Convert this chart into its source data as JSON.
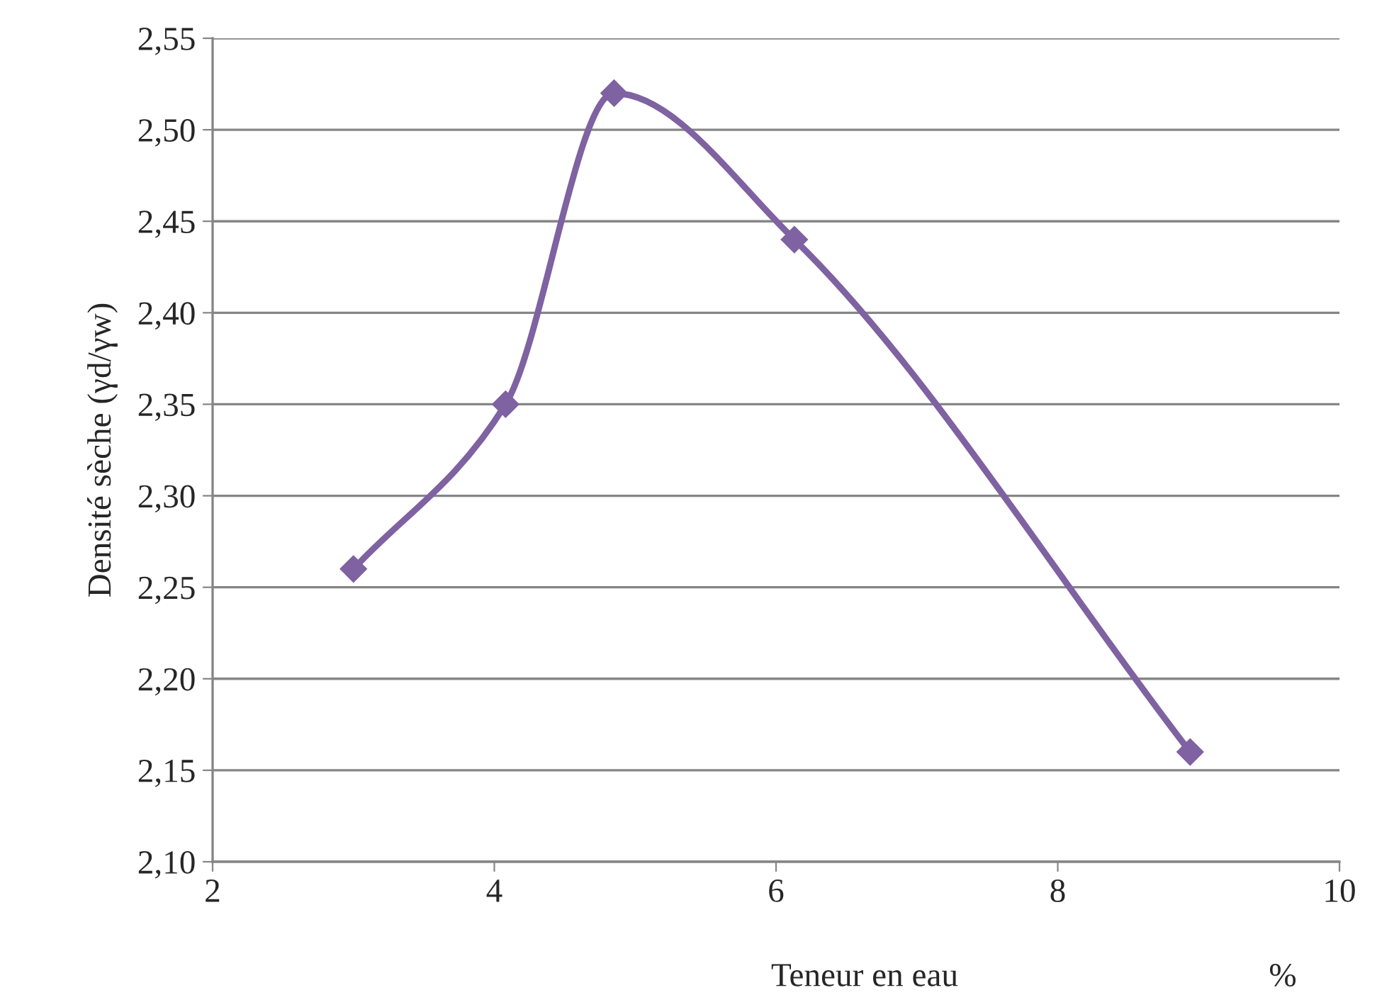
{
  "chart_data": {
    "type": "line",
    "xlabel": "Teneur en eau",
    "ylabel": "Densité sèche (γd/γw)",
    "annotations": [
      "%"
    ],
    "x": [
      3.0,
      4.08,
      4.85,
      6.13,
      8.94
    ],
    "series": [
      {
        "color": "#7f62a1",
        "values": [
          2.26,
          2.35,
          2.52,
          2.44,
          2.16
        ]
      }
    ],
    "xlim": [
      2,
      10
    ],
    "xticks": [
      2,
      4,
      6,
      8,
      10
    ],
    "ylim": [
      2.1,
      2.55
    ],
    "yticks": [
      {
        "value": 2.1,
        "label": "2,10"
      },
      {
        "value": 2.15,
        "label": "2,15"
      },
      {
        "value": 2.2,
        "label": "2,20"
      },
      {
        "value": 2.25,
        "label": "2,25"
      },
      {
        "value": 2.3,
        "label": "2,30"
      },
      {
        "value": 2.35,
        "label": "2,35"
      },
      {
        "value": 2.4,
        "label": "2,40"
      },
      {
        "value": 2.45,
        "label": "2,45"
      },
      {
        "value": 2.5,
        "label": "2,50"
      },
      {
        "value": 2.55,
        "label": "2,55"
      }
    ],
    "grid": "y",
    "marker": "diamond",
    "line_style": "solid"
  }
}
